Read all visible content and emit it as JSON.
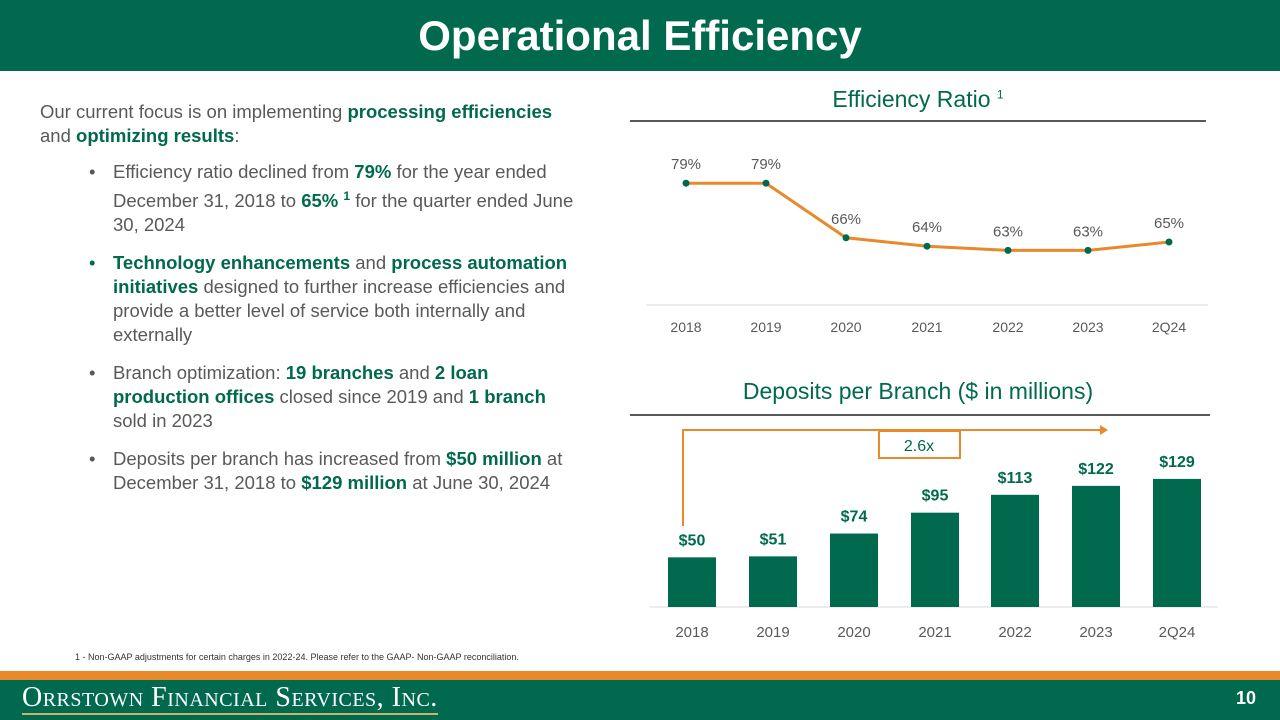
{
  "title": "Operational Efficiency",
  "intro": {
    "t1": "Our current focus is on implementing ",
    "b1": "processing efficiencies",
    "t2": " and ",
    "b2": "optimizing results",
    "t3": ":"
  },
  "bullets": [
    {
      "t1": "Efficiency ratio declined from ",
      "b1": "79%",
      "t2": " for the year ended December 31, 2018 to ",
      "b2": "65%",
      "sup": "1",
      "t3": " for the quarter ended June 30, 2024"
    },
    {
      "b1": "Technology enhancements",
      "t1": " and ",
      "b2": "process automation initiatives",
      "t2": " designed to further increase efficiencies and provide a better level of service both internally and externally"
    },
    {
      "t1": "Branch optimization: ",
      "b1": "19 branches",
      "t2": " and ",
      "b2": "2 loan production offices",
      "t3": " closed since 2019 and ",
      "b3": "1 branch",
      "t4": " sold in 2023"
    },
    {
      "t1": "Deposits per branch has increased from ",
      "b1": "$50 million",
      "t2": " at December 31, 2018 to ",
      "b2": "$129 million",
      "t3": " at June 30, 2024"
    }
  ],
  "footnote": "1 - Non-GAAP adjustments for certain charges in 2022-24. Please refer to the GAAP- Non-GAAP reconciliation.",
  "logo": "Orrstown Financial Services, Inc.",
  "page_number": "10",
  "colors": {
    "green": "#00694E",
    "orange": "#E8892B"
  },
  "chart_data": [
    {
      "type": "line",
      "title": "Efficiency Ratio",
      "title_sup": "1",
      "categories": [
        "2018",
        "2019",
        "2020",
        "2021",
        "2022",
        "2023",
        "2Q24"
      ],
      "values": [
        79,
        79,
        66,
        64,
        63,
        63,
        65
      ],
      "labels": [
        "79%",
        "79%",
        "66%",
        "64%",
        "63%",
        "63%",
        "65%"
      ],
      "ylim": [
        50,
        85
      ],
      "grid": false
    },
    {
      "type": "bar",
      "title": "Deposits per Branch ($ in millions)",
      "categories": [
        "2018",
        "2019",
        "2020",
        "2021",
        "2022",
        "2023",
        "2Q24"
      ],
      "values": [
        50,
        51,
        74,
        95,
        113,
        122,
        129
      ],
      "labels": [
        "$50",
        "$51",
        "$74",
        "$95",
        "$113",
        "$122",
        "$129"
      ],
      "ylim": [
        0,
        140
      ],
      "annotation": "2.6x",
      "grid": false
    }
  ]
}
